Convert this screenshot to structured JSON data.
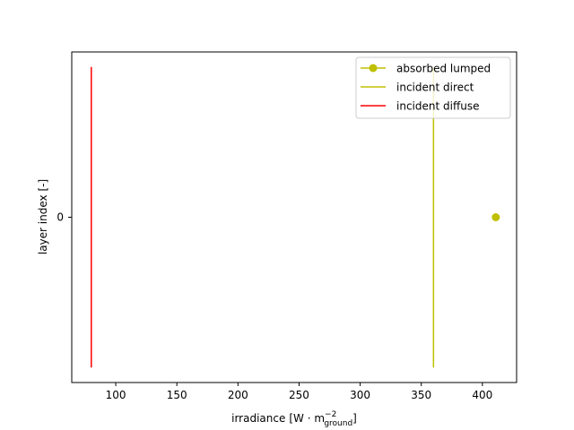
{
  "chart_data": {
    "type": "line",
    "xlabel_main": "irradiance",
    "xlabel_unit_prefix": "[W · m",
    "xlabel_unit_sup": "−2",
    "xlabel_unit_sub": "ground",
    "xlabel_unit_suffix": "]",
    "ylabel": "layer index [-]",
    "xlim": [
      64,
      428
    ],
    "ylim": [
      -0.55,
      0.55
    ],
    "x_ticks": [
      {
        "value": 100,
        "label": "100"
      },
      {
        "value": 150,
        "label": "150"
      },
      {
        "value": 200,
        "label": "200"
      },
      {
        "value": 250,
        "label": "250"
      },
      {
        "value": 300,
        "label": "300"
      },
      {
        "value": 350,
        "label": "350"
      },
      {
        "value": 400,
        "label": "400"
      }
    ],
    "y_ticks": [
      {
        "value": 0,
        "label": "0"
      }
    ],
    "grid": false,
    "legend_placement": "top-right",
    "series": [
      {
        "name": "absorbed lumped",
        "kind": "marker-line",
        "color": "#bfbf00",
        "points": [
          {
            "x": 411,
            "y": 0
          }
        ]
      },
      {
        "name": "incident direct",
        "kind": "line",
        "color": "#bfbf00",
        "points": [
          {
            "x": 360,
            "y": -0.5
          },
          {
            "x": 360,
            "y": 0.5
          }
        ]
      },
      {
        "name": "incident diffuse",
        "kind": "line",
        "color": "#ff0000",
        "points": [
          {
            "x": 80,
            "y": -0.5
          },
          {
            "x": 80,
            "y": 0.5
          }
        ]
      }
    ]
  }
}
